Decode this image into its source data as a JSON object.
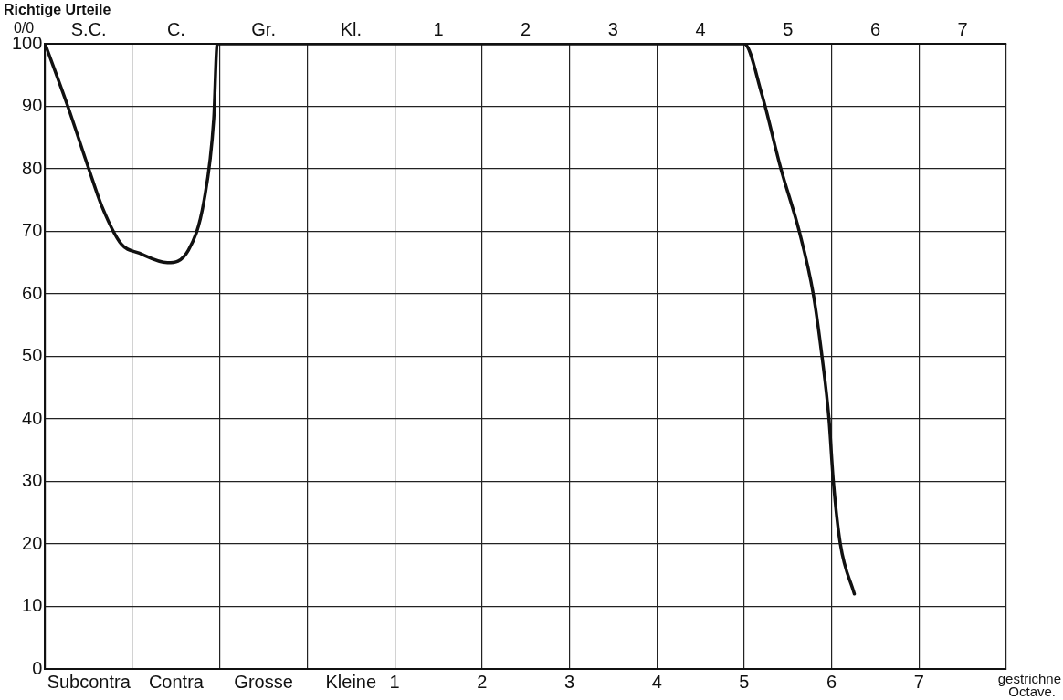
{
  "chart_data": {
    "type": "line",
    "ylabel": "Richtige Urteile",
    "xlabel": "gestrichne Octave.",
    "annotations": [
      "0/0"
    ],
    "x": [
      -3,
      -2.74,
      -2.5,
      -2.35,
      -2.13,
      -1.92,
      -1.6,
      -1.36,
      -1.18,
      -1.07,
      -1.03,
      5,
      5.2,
      5.42,
      5.63,
      5.79,
      5.89,
      5.97,
      6.02,
      6.1,
      6.26
    ],
    "series": [
      {
        "color": "#111111",
        "values": [
          100,
          90,
          80,
          74,
          68,
          66.5,
          65,
          67,
          75,
          88,
          100,
          100,
          92,
          80,
          70,
          60,
          50,
          40,
          30,
          20,
          12
        ]
      }
    ],
    "xlim": [
      -3,
      8
    ],
    "xticks": [
      {
        "value": -3,
        "label": null
      },
      {
        "value": -2.5,
        "label": "Subcontra"
      },
      {
        "value": -2,
        "label": null
      },
      {
        "value": -1.5,
        "label": "Contra"
      },
      {
        "value": -1,
        "label": null
      },
      {
        "value": -0.5,
        "label": "Grosse"
      },
      {
        "value": 0,
        "label": null
      },
      {
        "value": 0.5,
        "label": "Kleine"
      },
      1,
      2,
      3,
      4,
      5,
      6,
      7,
      {
        "value": 8,
        "label": null
      }
    ],
    "x2lim": [
      -3.5,
      7.5
    ],
    "x2ticks": [
      {
        "value": -3,
        "label": "S.C."
      },
      {
        "value": -2,
        "label": "C."
      },
      {
        "value": -1,
        "label": "Gr."
      },
      {
        "value": 0,
        "label": "Kl."
      },
      1,
      2,
      3,
      4,
      5,
      6,
      7
    ],
    "ylim": [
      0,
      100
    ],
    "yticks": [
      0,
      10,
      20,
      30,
      40,
      50,
      60,
      70,
      80,
      90,
      100
    ],
    "grid": true,
    "legend": false,
    "marker": "none",
    "line_style": "solid"
  }
}
